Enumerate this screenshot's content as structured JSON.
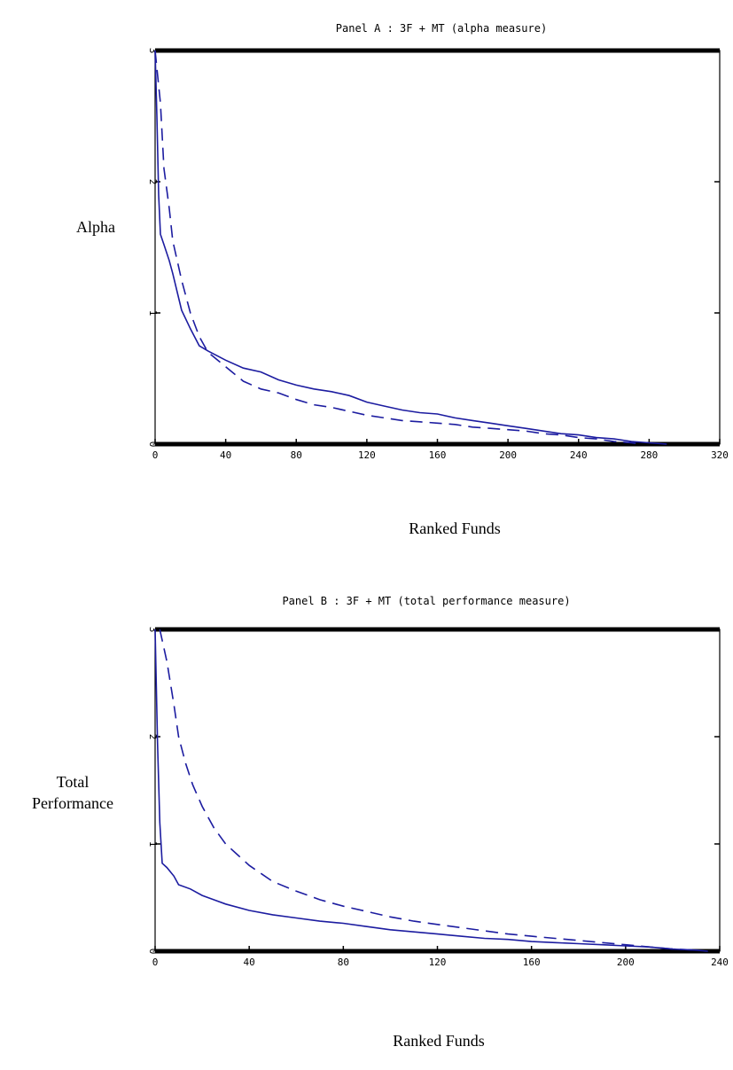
{
  "chart_data": [
    {
      "type": "line",
      "title": "Panel A : 3F + MT (alpha measure)",
      "ylabel": "Alpha",
      "xlabel": "Ranked Funds",
      "xlim": [
        0,
        320
      ],
      "ylim": [
        0,
        3
      ],
      "xticks": [
        0,
        40,
        80,
        120,
        160,
        200,
        240,
        280,
        320
      ],
      "yticks": [
        0,
        1,
        2,
        3
      ],
      "grid": false,
      "series": [
        {
          "style": "solid",
          "x": [
            0,
            1,
            2,
            3,
            5,
            8,
            10,
            15,
            20,
            25,
            30,
            40,
            50,
            60,
            70,
            80,
            90,
            100,
            110,
            120,
            130,
            140,
            150,
            160,
            170,
            180,
            190,
            200,
            210,
            220,
            230,
            240,
            250,
            260,
            270,
            280,
            290
          ],
          "y": [
            3.0,
            2.5,
            1.9,
            1.6,
            1.52,
            1.4,
            1.3,
            1.02,
            0.88,
            0.75,
            0.71,
            0.64,
            0.58,
            0.55,
            0.49,
            0.45,
            0.42,
            0.4,
            0.37,
            0.32,
            0.29,
            0.26,
            0.24,
            0.23,
            0.2,
            0.18,
            0.16,
            0.14,
            0.12,
            0.1,
            0.08,
            0.07,
            0.05,
            0.04,
            0.02,
            0.01,
            0.0
          ]
        },
        {
          "style": "dashed",
          "x": [
            0,
            3,
            5,
            8,
            10,
            15,
            20,
            25,
            30,
            40,
            50,
            60,
            70,
            80,
            90,
            100,
            110,
            120,
            130,
            140,
            150,
            160,
            170,
            180,
            190,
            200,
            210,
            220,
            230,
            240,
            250,
            260,
            270,
            275
          ],
          "y": [
            3.0,
            2.6,
            2.1,
            1.8,
            1.55,
            1.25,
            1.0,
            0.82,
            0.7,
            0.59,
            0.48,
            0.42,
            0.39,
            0.34,
            0.3,
            0.28,
            0.25,
            0.22,
            0.2,
            0.18,
            0.17,
            0.16,
            0.15,
            0.13,
            0.12,
            0.11,
            0.1,
            0.08,
            0.07,
            0.05,
            0.04,
            0.02,
            0.01,
            0.0
          ]
        }
      ]
    },
    {
      "type": "line",
      "title": "Panel B : 3F + MT (total performance measure)",
      "ylabel": "Total Performance",
      "xlabel": "Ranked Funds",
      "xlim": [
        0,
        240
      ],
      "ylim": [
        0,
        3
      ],
      "xticks": [
        0,
        40,
        80,
        120,
        160,
        200,
        240
      ],
      "yticks": [
        0,
        1,
        2,
        3
      ],
      "grid": false,
      "series": [
        {
          "style": "solid",
          "x": [
            0,
            1,
            2,
            3,
            5,
            8,
            10,
            15,
            20,
            30,
            40,
            50,
            60,
            70,
            80,
            90,
            100,
            110,
            120,
            130,
            140,
            150,
            160,
            170,
            180,
            190,
            200,
            210,
            220,
            230,
            235
          ],
          "y": [
            3.0,
            1.95,
            1.2,
            0.82,
            0.78,
            0.7,
            0.62,
            0.58,
            0.52,
            0.44,
            0.38,
            0.34,
            0.31,
            0.28,
            0.26,
            0.23,
            0.2,
            0.18,
            0.16,
            0.14,
            0.12,
            0.11,
            0.09,
            0.08,
            0.07,
            0.06,
            0.05,
            0.04,
            0.02,
            0.01,
            0.0
          ]
        },
        {
          "style": "dashed",
          "x": [
            2,
            5,
            8,
            10,
            13,
            16,
            20,
            25,
            30,
            35,
            40,
            50,
            60,
            70,
            80,
            90,
            100,
            110,
            120,
            130,
            140,
            150,
            160,
            170,
            180,
            190,
            200,
            210,
            220,
            230
          ],
          "y": [
            3.0,
            2.7,
            2.3,
            2.0,
            1.75,
            1.55,
            1.35,
            1.15,
            1.0,
            0.9,
            0.8,
            0.65,
            0.56,
            0.48,
            0.42,
            0.37,
            0.32,
            0.28,
            0.25,
            0.22,
            0.19,
            0.16,
            0.14,
            0.12,
            0.1,
            0.08,
            0.06,
            0.04,
            0.02,
            0.01
          ]
        }
      ]
    }
  ]
}
